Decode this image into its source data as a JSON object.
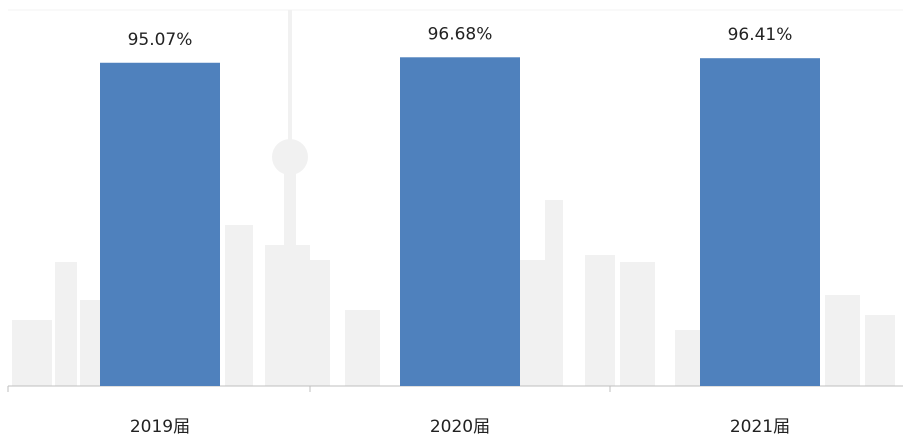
{
  "chart_data": {
    "type": "bar",
    "categories": [
      "2019届",
      "2020届",
      "2021届"
    ],
    "values": [
      95.07,
      96.68,
      96.41
    ],
    "value_labels": [
      "95.07%",
      "96.68%",
      "96.41%"
    ],
    "color": "#4f81bd",
    "ylim": [
      0,
      110
    ]
  }
}
